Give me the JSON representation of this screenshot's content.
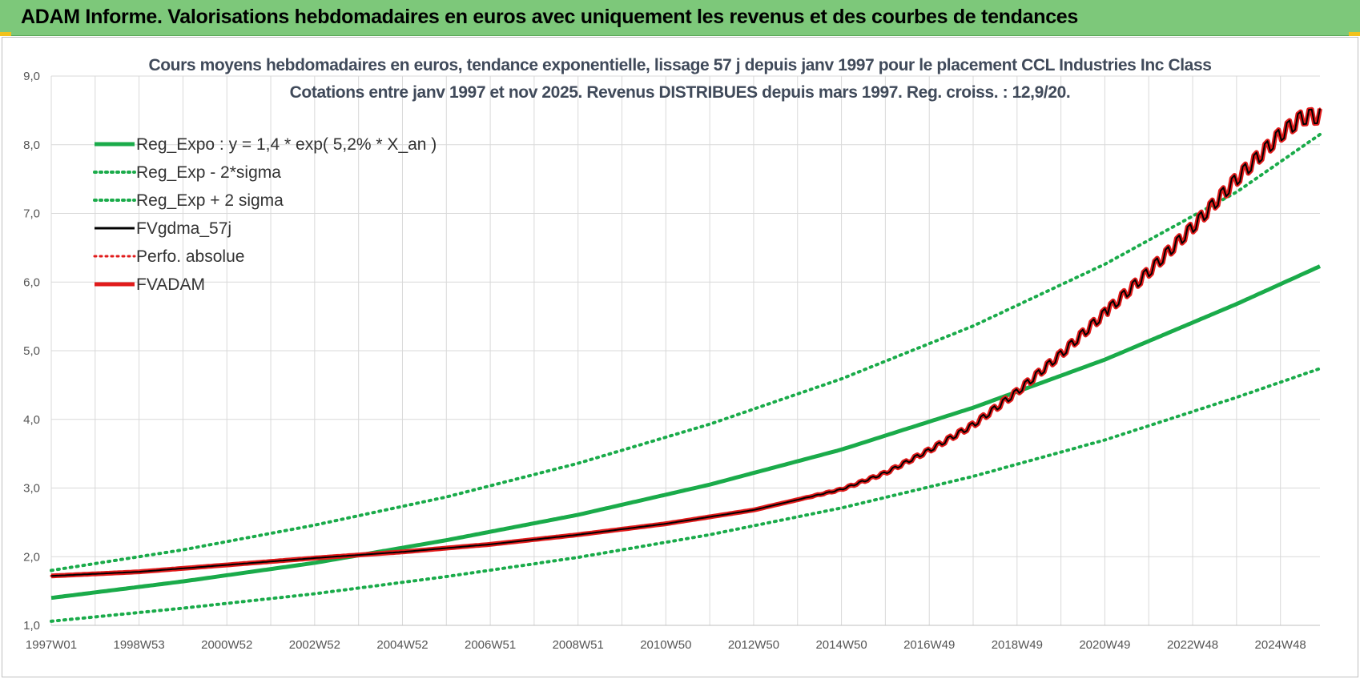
{
  "header": {
    "title": "ADAM Informe. Valorisations hebdomadaires en euros avec uniquement les revenus et des courbes de tendances"
  },
  "colors": {
    "header_bg": "#7dc87a",
    "green": "#1aab4a",
    "red": "#e11b1b",
    "black": "#000000",
    "grid": "#d9d9d9"
  },
  "chart_data": {
    "type": "line",
    "title": "Cours moyens hebdomadaires en euros, tendance exponentielle, lissage 57 j depuis janv 1997 pour le placement CCL Industries Inc Class",
    "subtitle": "Cotations entre janv 1997 et nov 2025. Revenus DISTRIBUES depuis mars 1997. Reg. croiss. : 12,9/20.",
    "xlabel": "",
    "ylabel": "",
    "ylim": [
      1.0,
      9.0
    ],
    "xlim": [
      1997.0,
      2025.9
    ],
    "grid": true,
    "legend_position": "top-left",
    "y_ticks": [
      "1,0",
      "2,0",
      "3,0",
      "4,0",
      "5,0",
      "6,0",
      "7,0",
      "8,0",
      "9,0"
    ],
    "y_tick_values": [
      1,
      2,
      3,
      4,
      5,
      6,
      7,
      8,
      9
    ],
    "x_ticks": [
      "1997W01",
      "1998W53",
      "2000W52",
      "2002W52",
      "2004W52",
      "2006W51",
      "2008W51",
      "2010W50",
      "2012W50",
      "2014W50",
      "2016W49",
      "2018W49",
      "2020W49",
      "2022W48",
      "2024W48"
    ],
    "x_tick_values": [
      1997,
      1999,
      2001,
      2003,
      2005,
      2007,
      2009,
      2011,
      2013,
      2015,
      2017,
      2019,
      2021,
      2023,
      2025
    ],
    "legend": [
      {
        "label": "Reg_Expo : y = 1,4 * exp( 5,2% *  X_an )",
        "color": "#1aab4a",
        "style": "solid",
        "width": 5
      },
      {
        "label": "Reg_Exp - 2*sigma",
        "color": "#1aab4a",
        "style": "dotted",
        "width": 4
      },
      {
        "label": "Reg_Exp + 2 sigma",
        "color": "#1aab4a",
        "style": "dotted",
        "width": 4
      },
      {
        "label": "FVgdma_57j",
        "color": "#000000",
        "style": "solid",
        "width": 3
      },
      {
        "label": "Perfo. absolue",
        "color": "#e11b1b",
        "style": "dotted",
        "width": 3
      },
      {
        "label": "FVADAM",
        "color": "#e11b1b",
        "style": "solid",
        "width": 5
      }
    ],
    "series": [
      {
        "name": "Reg_Expo",
        "x": [
          1997,
          2000,
          2003,
          2006,
          2009,
          2012,
          2015,
          2018,
          2021,
          2024,
          2025.9
        ],
        "values": [
          1.4,
          1.64,
          1.91,
          2.24,
          2.61,
          3.05,
          3.56,
          4.17,
          4.87,
          5.68,
          6.23
        ]
      },
      {
        "name": "Reg_Exp - 2*sigma",
        "x": [
          1997,
          2000,
          2003,
          2006,
          2009,
          2012,
          2015,
          2018,
          2021,
          2024,
          2025.9
        ],
        "values": [
          1.06,
          1.25,
          1.46,
          1.71,
          1.99,
          2.32,
          2.71,
          3.17,
          3.7,
          4.32,
          4.74
        ]
      },
      {
        "name": "Reg_Exp + 2 sigma",
        "x": [
          1997,
          2000,
          2003,
          2006,
          2009,
          2012,
          2015,
          2018,
          2021,
          2024,
          2025.9
        ],
        "values": [
          1.8,
          2.1,
          2.46,
          2.87,
          3.36,
          3.93,
          4.59,
          5.36,
          6.26,
          7.31,
          8.15
        ]
      },
      {
        "name": "FVgdma_57j",
        "x": [
          1997,
          1999,
          2001,
          2003,
          2005,
          2007,
          2009,
          2011,
          2013,
          2015,
          2016,
          2017,
          2018,
          2019,
          2020,
          2021,
          2022,
          2023,
          2024,
          2025,
          2025.5,
          2025.9
        ],
        "values": [
          1.72,
          1.78,
          1.88,
          1.98,
          2.07,
          2.18,
          2.32,
          2.48,
          2.68,
          2.98,
          3.22,
          3.55,
          3.92,
          4.4,
          4.95,
          5.55,
          6.15,
          6.8,
          7.5,
          8.15,
          8.4,
          8.42
        ]
      },
      {
        "name": "Perfo. absolue",
        "x": [
          1997,
          1999,
          2001,
          2003,
          2005,
          2007,
          2009,
          2011,
          2013,
          2015,
          2016,
          2017,
          2018,
          2019,
          2020,
          2021,
          2022,
          2023,
          2024,
          2025,
          2025.5,
          2025.9
        ],
        "values": [
          1.72,
          1.78,
          1.88,
          1.98,
          2.07,
          2.18,
          2.32,
          2.48,
          2.68,
          2.98,
          3.22,
          3.55,
          3.92,
          4.4,
          4.95,
          5.55,
          6.15,
          6.8,
          7.5,
          8.15,
          8.4,
          8.42
        ]
      },
      {
        "name": "FVADAM",
        "x": [
          1997,
          1999,
          2001,
          2003,
          2005,
          2007,
          2009,
          2011,
          2013,
          2015,
          2016,
          2017,
          2018,
          2019,
          2020,
          2021,
          2022,
          2023,
          2024,
          2025,
          2025.5,
          2025.9
        ],
        "values": [
          1.72,
          1.78,
          1.88,
          1.98,
          2.07,
          2.18,
          2.32,
          2.48,
          2.68,
          2.98,
          3.22,
          3.55,
          3.92,
          4.4,
          4.95,
          5.55,
          6.15,
          6.8,
          7.5,
          8.15,
          8.4,
          8.42
        ]
      }
    ]
  }
}
